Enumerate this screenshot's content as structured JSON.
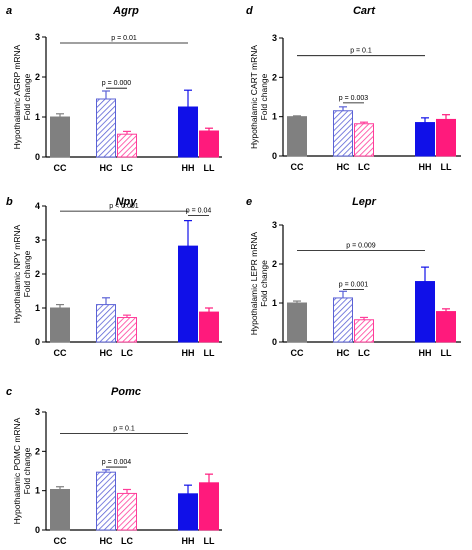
{
  "colors": {
    "CC": "#808080",
    "HC": "#5b62d6",
    "LC": "#ff3d9a",
    "HH": "#1010e8",
    "LL": "#ff1a7c"
  },
  "chart_data": [
    {
      "letter": "a",
      "title": "Agrp",
      "type": "bar",
      "ylabel": [
        "Hypothalamic AGRP mRNA",
        "Fold change"
      ],
      "ylim": [
        0,
        3
      ],
      "yticks": [
        "0",
        "1",
        "2",
        "3"
      ],
      "categories": [
        "CC",
        "HC",
        "LC",
        "HH",
        "LL"
      ],
      "values": [
        1.0,
        1.45,
        0.57,
        1.25,
        0.65
      ],
      "errors": [
        0.08,
        0.2,
        0.07,
        0.42,
        0.07
      ],
      "comparisons": [
        {
          "from": "CC",
          "to": "HH",
          "label": "p = 0.01",
          "level": 2.85
        },
        {
          "from": "HC",
          "to": "LC",
          "label": "p = 0.000",
          "level": 1.72
        }
      ]
    },
    {
      "letter": "d",
      "title": "Cart",
      "type": "bar",
      "ylabel": [
        "Hypothalamic CART mRNA",
        "Fold change"
      ],
      "ylim": [
        0,
        3
      ],
      "yticks": [
        "0",
        "1",
        "2",
        "3"
      ],
      "categories": [
        "CC",
        "HC",
        "LC",
        "HH",
        "LL"
      ],
      "values": [
        1.0,
        1.15,
        0.82,
        0.85,
        0.93
      ],
      "errors": [
        0.02,
        0.1,
        0.04,
        0.12,
        0.12
      ],
      "comparisons": [
        {
          "from": "CC",
          "to": "HH",
          "label": "p = 0.1",
          "level": 2.55
        },
        {
          "from": "HC",
          "to": "LC",
          "label": "p = 0.003",
          "level": 1.35
        }
      ]
    },
    {
      "letter": "b",
      "title": "Npy",
      "type": "bar",
      "ylabel": [
        "Hypothalamic NPY mRNA",
        "Fold change"
      ],
      "ylim": [
        0,
        4
      ],
      "yticks": [
        "0",
        "1",
        "2",
        "3",
        "4"
      ],
      "categories": [
        "CC",
        "HC",
        "LC",
        "HH",
        "LL"
      ],
      "values": [
        1.0,
        1.1,
        0.72,
        2.82,
        0.88
      ],
      "errors": [
        0.1,
        0.2,
        0.07,
        0.75,
        0.12
      ],
      "comparisons": [
        {
          "from": "CC",
          "to": "HH",
          "label": "p < 0.001",
          "level": 3.85
        },
        {
          "from": "HH",
          "to": "LL",
          "label": "p = 0.04",
          "level": 3.72
        }
      ]
    },
    {
      "letter": "e",
      "title": "Lepr",
      "type": "bar",
      "ylabel": [
        "Hypothalamic LEPR mRNA",
        "Fold change"
      ],
      "ylim": [
        0,
        3
      ],
      "yticks": [
        "0",
        "1",
        "2",
        "3"
      ],
      "categories": [
        "CC",
        "HC",
        "LC",
        "HH",
        "LL"
      ],
      "values": [
        1.0,
        1.13,
        0.57,
        1.55,
        0.78
      ],
      "errors": [
        0.05,
        0.17,
        0.06,
        0.37,
        0.07
      ],
      "comparisons": [
        {
          "from": "CC",
          "to": "HH",
          "label": "p = 0.009",
          "level": 2.35
        },
        {
          "from": "HC",
          "to": "LC",
          "label": "p = 0.001",
          "level": 1.35
        }
      ]
    },
    {
      "letter": "c",
      "title": "Pomc",
      "type": "bar",
      "ylabel": [
        "Hypothalamic POMC mRNA",
        "Fold change"
      ],
      "ylim": [
        0,
        3
      ],
      "yticks": [
        "0",
        "1",
        "2",
        "3"
      ],
      "categories": [
        "CC",
        "HC",
        "LC",
        "HH",
        "LL"
      ],
      "values": [
        1.03,
        1.47,
        0.93,
        0.92,
        1.2
      ],
      "errors": [
        0.07,
        0.06,
        0.1,
        0.22,
        0.22
      ],
      "comparisons": [
        {
          "from": "CC",
          "to": "HH",
          "label": "p = 0.1",
          "level": 2.45
        },
        {
          "from": "HC",
          "to": "LC",
          "label": "p = 0.004",
          "level": 1.6
        }
      ]
    }
  ]
}
